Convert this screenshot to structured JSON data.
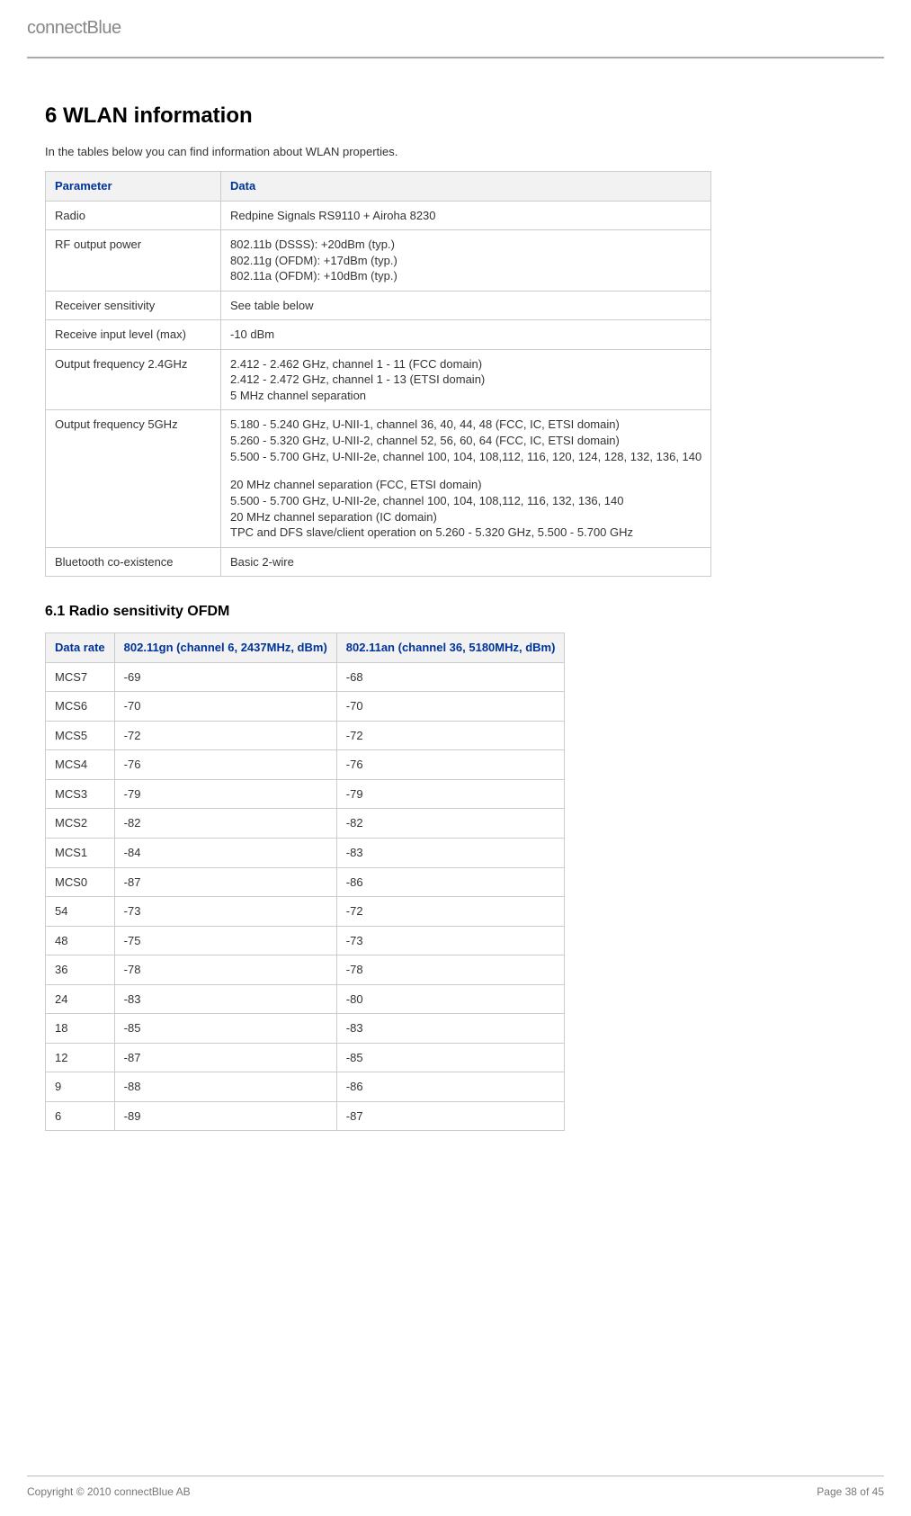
{
  "brand": "connectBlue",
  "section": {
    "title": "6 WLAN information",
    "intro": "In the tables below you can find information about WLAN properties."
  },
  "table1": {
    "headers": {
      "param": "Parameter",
      "data": "Data"
    },
    "rows": [
      {
        "param": "Radio",
        "data": [
          "Redpine Signals RS9110 + Airoha 8230"
        ]
      },
      {
        "param": "RF output power",
        "data": [
          "802.11b (DSSS): +20dBm (typ.)",
          "802.11g (OFDM): +17dBm (typ.)",
          "802.11a (OFDM): +10dBm (typ.)"
        ]
      },
      {
        "param": "Receiver sensitivity",
        "data": [
          "See table below"
        ]
      },
      {
        "param": "Receive input level (max)",
        "data": [
          "-10 dBm"
        ]
      },
      {
        "param": "Output frequency 2.4GHz",
        "data": [
          "2.412 - 2.462 GHz, channel 1 - 11 (FCC domain)",
          "2.412 - 2.472 GHz, channel 1 - 13 (ETSI domain)",
          "5 MHz channel separation"
        ]
      },
      {
        "param": "Output frequency 5GHz",
        "data": [
          "5.180 - 5.240 GHz, U-NII-1, channel 36, 40, 44, 48 (FCC, IC, ETSI domain)",
          "5.260 - 5.320 GHz, U-NII-2, channel 52, 56, 60, 64 (FCC, IC, ETSI domain)",
          "5.500 - 5.700 GHz, U-NII-2e, channel 100, 104, 108,112, 116, 120, 124, 128, 132, 136, 140",
          "",
          "20 MHz channel separation (FCC, ETSI domain)",
          "5.500 - 5.700 GHz, U-NII-2e, channel 100, 104, 108,112, 116, 132, 136, 140",
          "20 MHz channel separation (IC domain)",
          "TPC and DFS slave/client operation on 5.260 - 5.320 GHz, 5.500 - 5.700 GHz"
        ]
      },
      {
        "param": "Bluetooth co-existence",
        "data": [
          "Basic 2-wire"
        ]
      }
    ]
  },
  "subsection": {
    "title": "6.1 Radio sensitivity OFDM"
  },
  "table2": {
    "headers": {
      "rate": "Data rate",
      "gn": "802.11gn (channel 6, 2437MHz, dBm)",
      "an": "802.11an (channel 36, 5180MHz, dBm)"
    },
    "rows": [
      {
        "rate": "MCS7",
        "gn": "-69",
        "an": "-68"
      },
      {
        "rate": "MCS6",
        "gn": "-70",
        "an": "-70"
      },
      {
        "rate": "MCS5",
        "gn": "-72",
        "an": "-72"
      },
      {
        "rate": "MCS4",
        "gn": "-76",
        "an": "-76"
      },
      {
        "rate": "MCS3",
        "gn": "-79",
        "an": "-79"
      },
      {
        "rate": "MCS2",
        "gn": "-82",
        "an": "-82"
      },
      {
        "rate": "MCS1",
        "gn": "-84",
        "an": "-83"
      },
      {
        "rate": "MCS0",
        "gn": "-87",
        "an": "-86"
      },
      {
        "rate": "54",
        "gn": "-73",
        "an": "-72"
      },
      {
        "rate": "48",
        "gn": "-75",
        "an": "-73"
      },
      {
        "rate": "36",
        "gn": "-78",
        "an": "-78"
      },
      {
        "rate": "24",
        "gn": "-83",
        "an": "-80"
      },
      {
        "rate": "18",
        "gn": "-85",
        "an": "-83"
      },
      {
        "rate": "12",
        "gn": "-87",
        "an": "-85"
      },
      {
        "rate": "9",
        "gn": "-88",
        "an": "-86"
      },
      {
        "rate": "6",
        "gn": "-89",
        "an": "-87"
      }
    ]
  },
  "footer": {
    "copyright": "Copyright © 2010 connectBlue AB",
    "page": "Page 38 of 45"
  }
}
